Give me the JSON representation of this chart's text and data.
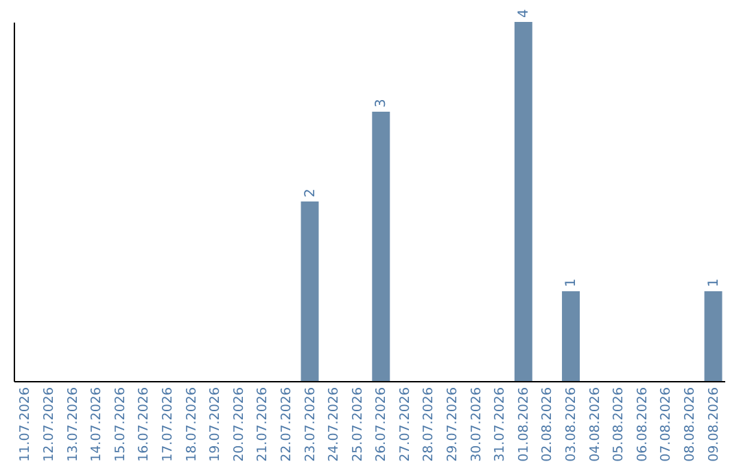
{
  "chart_data": {
    "type": "bar",
    "categories": [
      "11.07.2026",
      "12.07.2026",
      "13.07.2026",
      "14.07.2026",
      "15.07.2026",
      "16.07.2026",
      "17.07.2026",
      "18.07.2026",
      "19.07.2026",
      "20.07.2026",
      "21.07.2026",
      "22.07.2026",
      "23.07.2026",
      "24.07.2026",
      "25.07.2026",
      "26.07.2026",
      "27.07.2026",
      "28.07.2026",
      "29.07.2026",
      "30.07.2026",
      "31.07.2026",
      "01.08.2026",
      "02.08.2026",
      "03.08.2026",
      "04.08.2026",
      "05.08.2026",
      "06.08.2026",
      "07.08.2026",
      "08.08.2026",
      "09.08.2026"
    ],
    "values": [
      null,
      null,
      null,
      null,
      null,
      null,
      null,
      null,
      null,
      null,
      null,
      null,
      2,
      null,
      null,
      3,
      null,
      null,
      null,
      null,
      null,
      4,
      null,
      1,
      null,
      null,
      null,
      null,
      null,
      1
    ],
    "value_labels": [
      null,
      null,
      null,
      null,
      null,
      null,
      null,
      null,
      null,
      null,
      null,
      null,
      "2",
      null,
      null,
      "3",
      null,
      null,
      null,
      null,
      null,
      "4",
      null,
      "1",
      null,
      null,
      null,
      null,
      null,
      "1"
    ],
    "color": "#6b8cab",
    "grid": false,
    "tick_labels": "x"
  }
}
